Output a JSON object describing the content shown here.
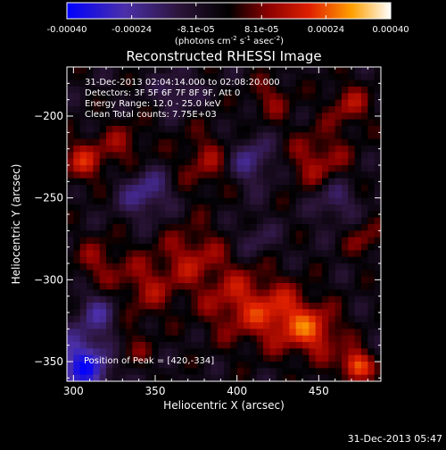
{
  "colorbar": {
    "tick_labels": [
      "-0.00040",
      "-0.00024",
      "-8.1e-05",
      "8.1e-05",
      "0.00024",
      "0.00040"
    ],
    "tick_values": [
      -0.0004,
      -0.00024,
      -8.1e-05,
      8.1e-05,
      0.00024,
      0.0004
    ],
    "range": [
      -0.0004,
      0.0004
    ],
    "units_main": "(photons cm",
    "units_exp1": "-2",
    "units_mid": " s",
    "units_exp2": "-1",
    "units_tail": " asec",
    "units_exp3": "-2",
    "units_close": ")"
  },
  "chart_data": {
    "type": "heatmap",
    "title": "Reconstructed RHESSI Image",
    "xlabel": "Heliocentric X (arcsec)",
    "ylabel": "Heliocentric Y (arcsec)",
    "xlim": [
      296,
      488
    ],
    "ylim": [
      -362,
      -170
    ],
    "x_ticks": [
      300,
      350,
      400,
      450
    ],
    "y_ticks": [
      -200,
      -250,
      -300,
      -350
    ],
    "x_tick_labels": [
      "300",
      "350",
      "400",
      "450"
    ],
    "y_tick_labels": [
      "−200",
      "−250",
      "−300",
      "−350"
    ],
    "annotations": [
      "31-Dec-2013 02:04:14.000 to 02:08:20.000",
      "Detectors: 3F 5F 6F 7F 8F 9F, Att 0",
      "Energy Range: 12.0 - 25.0 keV",
      "Clean    Total counts: 7.75E+03"
    ],
    "peak_label": "Position of Peak = [420,-334]",
    "peak": [
      420,
      -334
    ],
    "colormap": [
      "#0000ff",
      "#4f2a9c",
      "#2a1440",
      "#000000",
      "#7a0000",
      "#e01a00",
      "#ff7a00",
      "#ffd200",
      "#ffffff"
    ]
  },
  "footer": {
    "timestamp": "31-Dec-2013 05:47"
  }
}
